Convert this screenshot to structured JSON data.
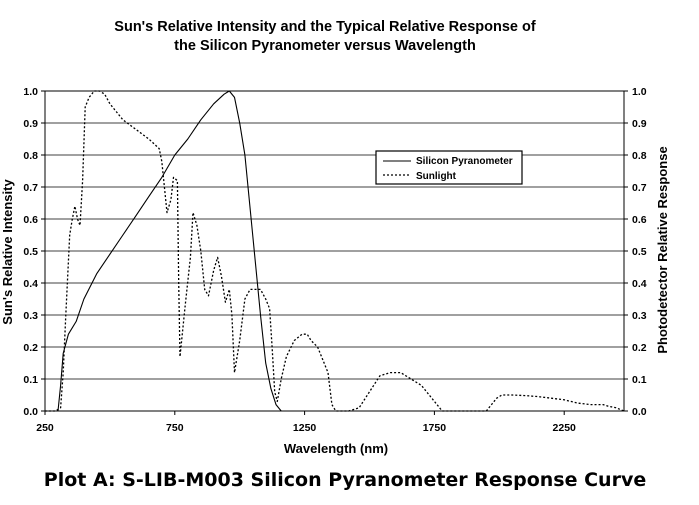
{
  "chart_data": {
    "type": "line",
    "title_line1": "Sun's Relative Intensity and the Typical Relative Response of",
    "title_line2": "the Silicon Pyranometer versus Wavelength",
    "xlabel": "Wavelength (nm)",
    "ylabel_left": "Sun's Relative Intensity",
    "ylabel_right": "Photodetector Relative Response",
    "xlim": [
      250,
      2500
    ],
    "ylim": [
      0,
      1
    ],
    "x_ticks": [
      "250",
      "750",
      "1250",
      "1750",
      "2250"
    ],
    "x_tick_values": [
      250,
      750,
      1250,
      1750,
      2250
    ],
    "y_ticks": [
      "0.0",
      "0.1",
      "0.2",
      "0.3",
      "0.4",
      "0.5",
      "0.6",
      "0.7",
      "0.8",
      "0.9",
      "1.0"
    ],
    "y_tick_values": [
      0,
      0.1,
      0.2,
      0.3,
      0.4,
      0.5,
      0.6,
      0.7,
      0.8,
      0.9,
      1.0
    ],
    "grid": "horizontal",
    "legend_position": "top-right",
    "series": [
      {
        "name": "Silicon Pyranometer",
        "style": "solid",
        "points": [
          [
            300,
            0.0
          ],
          [
            310,
            0.08
          ],
          [
            320,
            0.18
          ],
          [
            340,
            0.24
          ],
          [
            370,
            0.28
          ],
          [
            400,
            0.35
          ],
          [
            450,
            0.43
          ],
          [
            500,
            0.49
          ],
          [
            550,
            0.55
          ],
          [
            600,
            0.61
          ],
          [
            650,
            0.67
          ],
          [
            700,
            0.73
          ],
          [
            750,
            0.8
          ],
          [
            800,
            0.85
          ],
          [
            850,
            0.91
          ],
          [
            900,
            0.96
          ],
          [
            940,
            0.99
          ],
          [
            960,
            1.0
          ],
          [
            980,
            0.98
          ],
          [
            1000,
            0.9
          ],
          [
            1020,
            0.8
          ],
          [
            1050,
            0.55
          ],
          [
            1080,
            0.3
          ],
          [
            1100,
            0.15
          ],
          [
            1120,
            0.07
          ],
          [
            1140,
            0.02
          ],
          [
            1160,
            0.0
          ]
        ]
      },
      {
        "name": "Sunlight",
        "style": "dotted",
        "points": [
          [
            250,
            0.0
          ],
          [
            290,
            0.0
          ],
          [
            310,
            0.01
          ],
          [
            320,
            0.12
          ],
          [
            330,
            0.3
          ],
          [
            345,
            0.55
          ],
          [
            355,
            0.6
          ],
          [
            365,
            0.64
          ],
          [
            375,
            0.6
          ],
          [
            385,
            0.58
          ],
          [
            395,
            0.72
          ],
          [
            405,
            0.95
          ],
          [
            420,
            0.98
          ],
          [
            440,
            1.0
          ],
          [
            460,
            1.0
          ],
          [
            480,
            0.99
          ],
          [
            500,
            0.96
          ],
          [
            550,
            0.91
          ],
          [
            600,
            0.88
          ],
          [
            650,
            0.85
          ],
          [
            690,
            0.82
          ],
          [
            700,
            0.78
          ],
          [
            720,
            0.62
          ],
          [
            735,
            0.66
          ],
          [
            745,
            0.73
          ],
          [
            760,
            0.72
          ],
          [
            765,
            0.4
          ],
          [
            770,
            0.17
          ],
          [
            790,
            0.33
          ],
          [
            810,
            0.48
          ],
          [
            820,
            0.62
          ],
          [
            835,
            0.58
          ],
          [
            850,
            0.5
          ],
          [
            865,
            0.38
          ],
          [
            880,
            0.36
          ],
          [
            900,
            0.44
          ],
          [
            915,
            0.48
          ],
          [
            930,
            0.42
          ],
          [
            945,
            0.34
          ],
          [
            960,
            0.38
          ],
          [
            970,
            0.3
          ],
          [
            980,
            0.12
          ],
          [
            1000,
            0.22
          ],
          [
            1020,
            0.35
          ],
          [
            1040,
            0.38
          ],
          [
            1060,
            0.38
          ],
          [
            1080,
            0.38
          ],
          [
            1100,
            0.35
          ],
          [
            1115,
            0.32
          ],
          [
            1125,
            0.2
          ],
          [
            1135,
            0.06
          ],
          [
            1145,
            0.03
          ],
          [
            1160,
            0.1
          ],
          [
            1180,
            0.17
          ],
          [
            1210,
            0.22
          ],
          [
            1240,
            0.24
          ],
          [
            1260,
            0.24
          ],
          [
            1275,
            0.22
          ],
          [
            1300,
            0.2
          ],
          [
            1320,
            0.16
          ],
          [
            1340,
            0.12
          ],
          [
            1355,
            0.02
          ],
          [
            1370,
            0.0
          ],
          [
            1420,
            0.0
          ],
          [
            1460,
            0.01
          ],
          [
            1500,
            0.06
          ],
          [
            1540,
            0.11
          ],
          [
            1580,
            0.12
          ],
          [
            1620,
            0.12
          ],
          [
            1660,
            0.1
          ],
          [
            1700,
            0.08
          ],
          [
            1740,
            0.04
          ],
          [
            1780,
            0.0
          ],
          [
            1950,
            0.0
          ],
          [
            1970,
            0.02
          ],
          [
            1990,
            0.04
          ],
          [
            2010,
            0.05
          ],
          [
            2050,
            0.05
          ],
          [
            2100,
            0.048
          ],
          [
            2150,
            0.045
          ],
          [
            2200,
            0.04
          ],
          [
            2250,
            0.035
          ],
          [
            2300,
            0.025
          ],
          [
            2350,
            0.02
          ],
          [
            2400,
            0.02
          ],
          [
            2420,
            0.015
          ],
          [
            2450,
            0.01
          ],
          [
            2480,
            0.0
          ]
        ]
      }
    ]
  },
  "caption": "Plot A: S-LIB-M003 Silicon Pyranometer Response Curve"
}
